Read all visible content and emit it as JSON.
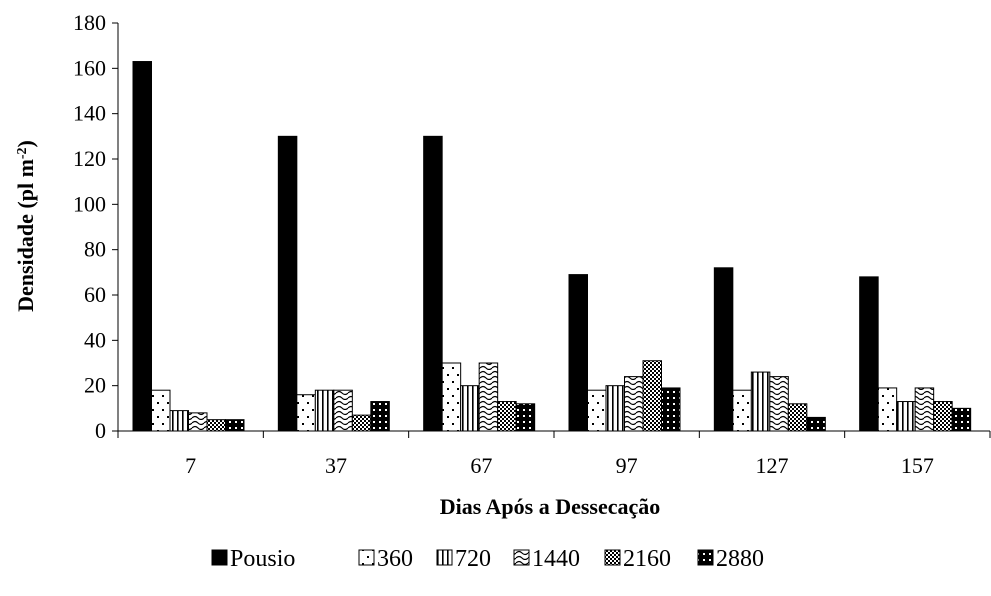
{
  "chart_data": {
    "type": "bar",
    "title": "",
    "xlabel": "Dias Após a Dessecação",
    "ylabel_main": "Densidade (pl m",
    "ylabel_sup": "-2",
    "ylabel_close": ")",
    "ylim": [
      0,
      180
    ],
    "yticks": [
      "0",
      "20",
      "40",
      "60",
      "80",
      "100",
      "120",
      "140",
      "160",
      "180"
    ],
    "categories": [
      "7",
      "37",
      "67",
      "97",
      "127",
      "157"
    ],
    "legend_position": "bottom",
    "grid": false,
    "series": [
      {
        "name": "Pousio",
        "pattern": "solid",
        "values": [
          163,
          130,
          130,
          69,
          72,
          68
        ]
      },
      {
        "name": "360",
        "pattern": "dots",
        "values": [
          18,
          16,
          30,
          18,
          18,
          19
        ]
      },
      {
        "name": "720",
        "pattern": "vlines",
        "values": [
          9,
          18,
          20,
          20,
          26,
          13
        ]
      },
      {
        "name": "1440",
        "pattern": "waves",
        "values": [
          8,
          18,
          30,
          24,
          24,
          19
        ]
      },
      {
        "name": "2160",
        "pattern": "checker",
        "values": [
          5,
          7,
          13,
          31,
          12,
          13
        ]
      },
      {
        "name": "2880",
        "pattern": "darkdots",
        "values": [
          5,
          13,
          12,
          19,
          6,
          10
        ]
      }
    ]
  }
}
